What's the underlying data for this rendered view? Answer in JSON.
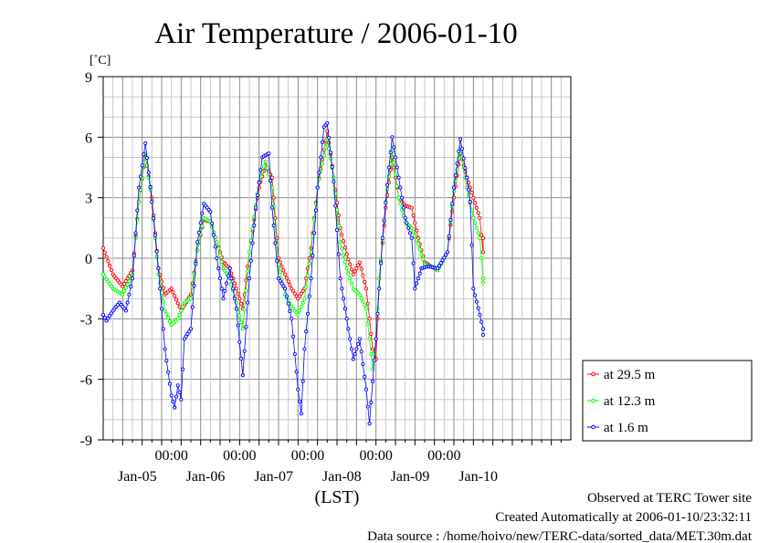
{
  "chart_data": {
    "type": "line",
    "title": "Air Temperature / 2006-01-10",
    "ylabel": "[˚C]",
    "xlabel": "(LST)",
    "ylim": [
      -9,
      9
    ],
    "y_ticks": [
      9,
      6,
      3,
      0,
      -3,
      -6,
      -9
    ],
    "xlim_hours": [
      0,
      144
    ],
    "time_tick_label": "00:00",
    "x_time_ticks": [
      21,
      42,
      63,
      84,
      105
    ],
    "x_date_labels": [
      {
        "label": "Jan-05",
        "at": 10.5
      },
      {
        "label": "Jan-06",
        "at": 31.5
      },
      {
        "label": "Jan-07",
        "at": 52.5
      },
      {
        "label": "Jan-08",
        "at": 73.5
      },
      {
        "label": "Jan-09",
        "at": 94.5
      },
      {
        "label": "Jan-10",
        "at": 115.5
      }
    ],
    "series": [
      {
        "name": "at 29.5 m",
        "color": "#ff0000",
        "points": [
          [
            0,
            0.5
          ],
          [
            3,
            -0.8
          ],
          [
            6,
            -1.4
          ],
          [
            9,
            -0.6
          ],
          [
            11,
            2.8
          ],
          [
            13,
            5.1
          ],
          [
            15,
            3.0
          ],
          [
            17,
            -0.5
          ],
          [
            19,
            -1.8
          ],
          [
            21,
            -1.5
          ],
          [
            24,
            -2.6
          ],
          [
            27,
            -1.8
          ],
          [
            29,
            0.4
          ],
          [
            31,
            1.9
          ],
          [
            33,
            1.8
          ],
          [
            35,
            0.8
          ],
          [
            37,
            -0.2
          ],
          [
            39,
            -0.5
          ],
          [
            41,
            -1.5
          ],
          [
            43,
            -2.5
          ],
          [
            45,
            0.3
          ],
          [
            48,
            3.5
          ],
          [
            50,
            4.6
          ],
          [
            52,
            4.0
          ],
          [
            54,
            0.0
          ],
          [
            56,
            -0.8
          ],
          [
            58,
            -1.5
          ],
          [
            60,
            -2.0
          ],
          [
            62,
            -1.5
          ],
          [
            64,
            0.5
          ],
          [
            66,
            3.5
          ],
          [
            69,
            6.3
          ],
          [
            71,
            4.0
          ],
          [
            73,
            1.5
          ],
          [
            75,
            0.2
          ],
          [
            77,
            -0.8
          ],
          [
            79,
            -0.2
          ],
          [
            81,
            -1.5
          ],
          [
            83,
            -4.5
          ],
          [
            84,
            -5.0
          ],
          [
            85,
            -1.0
          ],
          [
            87,
            2.5
          ],
          [
            89,
            5.0
          ],
          [
            91,
            3.0
          ],
          [
            93,
            2.6
          ],
          [
            95,
            2.5
          ],
          [
            97,
            1.0
          ],
          [
            99,
            -0.2
          ],
          [
            101,
            -0.4
          ],
          [
            103,
            -0.6
          ],
          [
            106,
            0.3
          ],
          [
            108,
            3.0
          ],
          [
            110,
            5.2
          ],
          [
            112,
            4.0
          ],
          [
            114,
            3.0
          ],
          [
            116,
            2.0
          ],
          [
            117,
            0.3
          ],
          [
            117,
            1.0
          ]
        ]
      },
      {
        "name": "at 12.3 m",
        "color": "#00ff00",
        "points": [
          [
            0,
            -0.8
          ],
          [
            3,
            -1.5
          ],
          [
            6,
            -1.8
          ],
          [
            9,
            -0.8
          ],
          [
            11,
            2.8
          ],
          [
            13,
            5.2
          ],
          [
            15,
            2.8
          ],
          [
            17,
            -0.8
          ],
          [
            19,
            -2.6
          ],
          [
            21,
            -3.3
          ],
          [
            23,
            -3.0
          ],
          [
            25,
            -2.2
          ],
          [
            27,
            -2.0
          ],
          [
            29,
            0.4
          ],
          [
            31,
            2.0
          ],
          [
            33,
            1.8
          ],
          [
            35,
            0.8
          ],
          [
            37,
            -0.5
          ],
          [
            39,
            -1.0
          ],
          [
            41,
            -2.2
          ],
          [
            43,
            -3.5
          ],
          [
            45,
            0.3
          ],
          [
            48,
            3.8
          ],
          [
            50,
            4.8
          ],
          [
            52,
            3.5
          ],
          [
            54,
            -0.3
          ],
          [
            56,
            -1.8
          ],
          [
            58,
            -2.4
          ],
          [
            60,
            -2.8
          ],
          [
            62,
            -2.0
          ],
          [
            64,
            0.3
          ],
          [
            66,
            3.5
          ],
          [
            69,
            5.9
          ],
          [
            71,
            4.0
          ],
          [
            73,
            0.8
          ],
          [
            75,
            -0.5
          ],
          [
            77,
            -1.5
          ],
          [
            79,
            -1.8
          ],
          [
            81,
            -2.5
          ],
          [
            83,
            -5.5
          ],
          [
            84,
            -4.0
          ],
          [
            85,
            -1.0
          ],
          [
            87,
            2.8
          ],
          [
            89,
            5.3
          ],
          [
            91,
            3.0
          ],
          [
            93,
            1.8
          ],
          [
            95,
            1.5
          ],
          [
            97,
            0.7
          ],
          [
            99,
            -0.3
          ],
          [
            101,
            -0.4
          ],
          [
            103,
            -0.6
          ],
          [
            106,
            0.3
          ],
          [
            108,
            3.3
          ],
          [
            110,
            5.5
          ],
          [
            112,
            3.5
          ],
          [
            114,
            2.0
          ],
          [
            116,
            1.0
          ],
          [
            117,
            -1.0
          ],
          [
            117,
            -1.2
          ]
        ]
      },
      {
        "name": "at 1.6 m",
        "color": "#0000ff",
        "points": [
          [
            0,
            -2.8
          ],
          [
            1,
            -3.1
          ],
          [
            3,
            -2.6
          ],
          [
            5,
            -2.2
          ],
          [
            7,
            -2.6
          ],
          [
            9,
            -1.0
          ],
          [
            11,
            3.5
          ],
          [
            13,
            5.7
          ],
          [
            15,
            2.8
          ],
          [
            17,
            -0.5
          ],
          [
            19,
            -4.5
          ],
          [
            21,
            -6.8
          ],
          [
            22,
            -7.4
          ],
          [
            23,
            -6.3
          ],
          [
            24,
            -7.0
          ],
          [
            25,
            -4.0
          ],
          [
            27,
            -3.5
          ],
          [
            29,
            0.8
          ],
          [
            31,
            2.7
          ],
          [
            33,
            2.3
          ],
          [
            35,
            0.0
          ],
          [
            37,
            -2.0
          ],
          [
            39,
            -0.5
          ],
          [
            41,
            -2.5
          ],
          [
            43,
            -5.8
          ],
          [
            45,
            -1.0
          ],
          [
            47,
            2.5
          ],
          [
            49,
            5.0
          ],
          [
            51,
            5.2
          ],
          [
            52,
            2.5
          ],
          [
            54,
            -1.0
          ],
          [
            56,
            -1.5
          ],
          [
            58,
            -3.0
          ],
          [
            60,
            -6.5
          ],
          [
            61,
            -7.7
          ],
          [
            62,
            -4.5
          ],
          [
            64,
            -1.0
          ],
          [
            66,
            3.5
          ],
          [
            68,
            6.5
          ],
          [
            69,
            6.7
          ],
          [
            71,
            3.8
          ],
          [
            73,
            -1.0
          ],
          [
            75,
            -3.0
          ],
          [
            77,
            -5.0
          ],
          [
            79,
            -4.0
          ],
          [
            81,
            -6.5
          ],
          [
            82,
            -8.2
          ],
          [
            84,
            -4.0
          ],
          [
            86,
            1.0
          ],
          [
            88,
            4.5
          ],
          [
            89,
            6.0
          ],
          [
            91,
            4.0
          ],
          [
            93,
            2.0
          ],
          [
            95,
            1.0
          ],
          [
            96,
            -1.5
          ],
          [
            98,
            -0.5
          ],
          [
            100,
            -0.4
          ],
          [
            103,
            -0.5
          ],
          [
            106,
            0.3
          ],
          [
            108,
            3.5
          ],
          [
            110,
            5.9
          ],
          [
            112,
            4.0
          ],
          [
            113,
            2.8
          ],
          [
            114,
            -1.5
          ],
          [
            116,
            -2.8
          ],
          [
            117,
            -3.5
          ],
          [
            117,
            -3.8
          ]
        ]
      }
    ]
  },
  "footer": {
    "observed": "Observed at TERC Tower site",
    "created": "Created Automatically at 2006-01-10/23:32:11",
    "source": "Data source : /home/hoivo/new/TERC-data/sorted_data/MET.30m.dat"
  }
}
